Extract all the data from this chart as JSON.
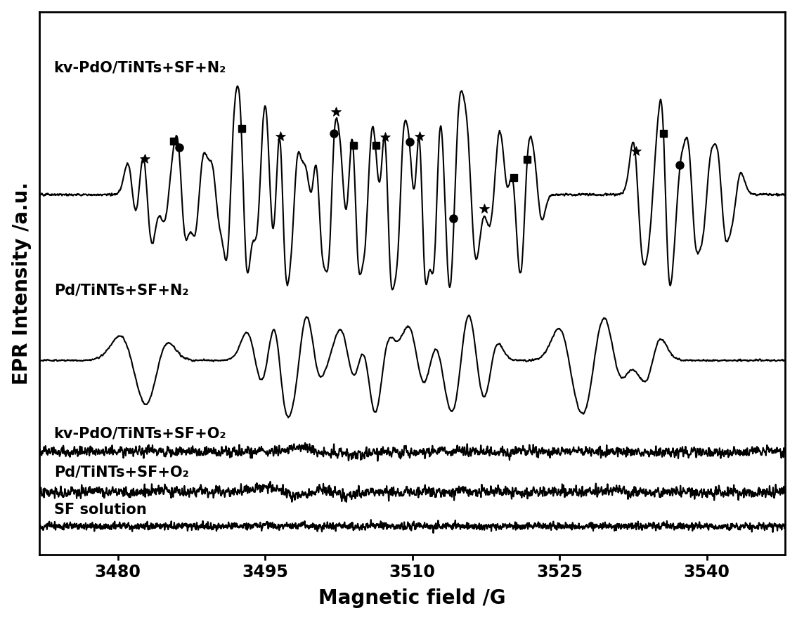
{
  "xlabel": "Magnetic field /G",
  "ylabel": "EPR Intensity /a.u.",
  "xmin": 3472,
  "xmax": 3548,
  "x_ticks": [
    3480,
    3495,
    3510,
    3525,
    3540
  ],
  "background_color": "#ffffff",
  "linewidth": 1.5,
  "line_color": "#000000",
  "labels": [
    "kv-PdO/TiNTs+SF+N₂",
    "Pd/TiNTs+SF+N₂",
    "kv-PdO/TiNTs+SF+O₂",
    "Pd/TiNTs+SF+O₂",
    "SF solution"
  ],
  "offsets": [
    2.8,
    1.35,
    0.55,
    0.2,
    -0.1
  ],
  "label_fontsize": 15,
  "tick_fontsize": 17,
  "axis_label_fontsize": 20
}
